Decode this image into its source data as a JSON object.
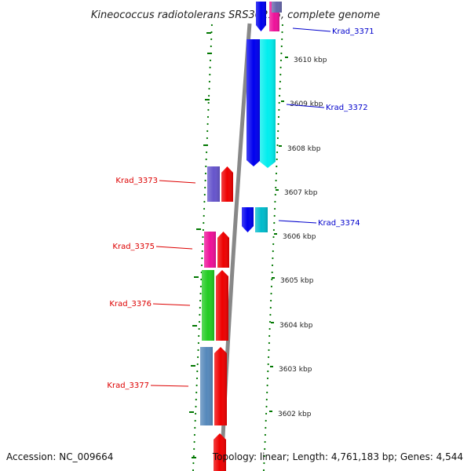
{
  "title": "Kineococcus radiotolerans SRS30216, complete genome",
  "footer": {
    "accession": "Accession: NC_009664",
    "summary": "Topology: linear; Length: 4,761,183 bp; Genes: 4,544"
  },
  "colors": {
    "forward_label": "#0000cc",
    "reverse_label": "#dd0000",
    "backbone": "#888888",
    "dots": "#007700"
  },
  "ticks": [
    {
      "label": "3610 kbp"
    },
    {
      "label": "3609 kbp"
    },
    {
      "label": "3608 kbp"
    },
    {
      "label": "3607 kbp"
    },
    {
      "label": "3606 kbp"
    },
    {
      "label": "3605 kbp"
    },
    {
      "label": "3604 kbp"
    },
    {
      "label": "3603 kbp"
    },
    {
      "label": "3602 kbp"
    }
  ],
  "genes": [
    {
      "label": "Krad_3371",
      "strand": "forward"
    },
    {
      "label": "Krad_3372",
      "strand": "forward"
    },
    {
      "label": "Krad_3373",
      "strand": "reverse"
    },
    {
      "label": "Krad_3374",
      "strand": "forward"
    },
    {
      "label": "Krad_3375",
      "strand": "reverse"
    },
    {
      "label": "Krad_3376",
      "strand": "reverse"
    },
    {
      "label": "Krad_3377",
      "strand": "reverse"
    }
  ]
}
